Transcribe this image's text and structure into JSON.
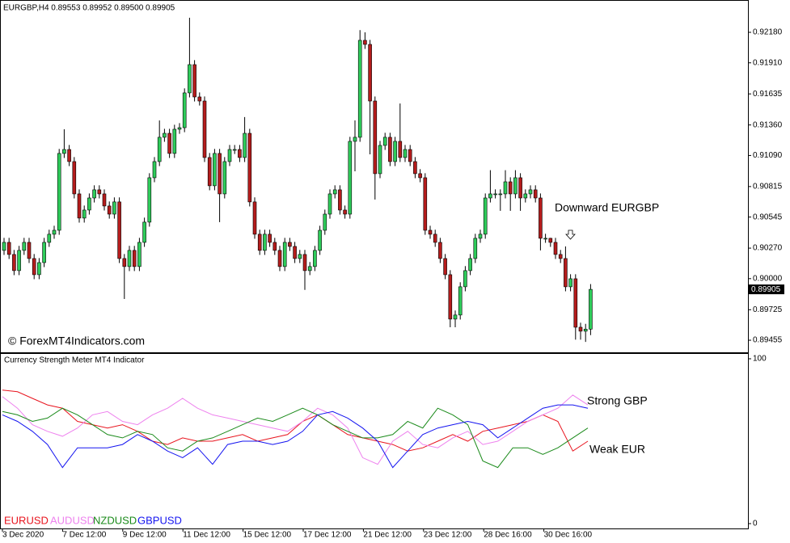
{
  "chart_data": [
    {
      "type": "candlestick",
      "title": "EURGBP,H4  0.89553 0.89952 0.89500 0.89905",
      "up_color": "#2ecc5a",
      "down_color": "#b51c1c",
      "ylim": [
        0.89348,
        0.92466
      ],
      "yticks": [
        {
          "value": 0.9218,
          "label": "0.92180"
        },
        {
          "value": 0.9191,
          "label": "0.91910"
        },
        0.91635,
        {
          "value": 0.9136,
          "label": "0.91360"
        },
        {
          "value": 0.9109,
          "label": "0.91090"
        },
        0.90815,
        0.90545,
        {
          "value": 0.9027,
          "label": "0.90270"
        },
        {
          "value": 0.9,
          "label": "0.90000"
        },
        0.89725,
        0.89455
      ],
      "x_tick_labels": [
        "3 Dec 2020",
        "7 Dec 12:00",
        "9 Dec 12:00",
        "11 Dec 12:00",
        "15 Dec 12:00",
        "17 Dec 12:00",
        "21 Dec 12:00",
        "23 Dec 12:00",
        "28 Dec 16:00",
        "30 Dec 16:00"
      ],
      "annotations": [
        "Downward EURGBP",
        "© ForexMT4Indicators.com"
      ],
      "candles": [
        [
          0.9025,
          0.90361,
          0.9021,
          0.90321
        ],
        [
          0.90321,
          0.90361,
          0.90174,
          0.90214
        ],
        [
          0.90214,
          0.90254,
          0.90031,
          0.90071
        ],
        [
          0.90071,
          0.9029,
          0.90031,
          0.9025
        ],
        [
          0.9025,
          0.90361,
          0.9021,
          0.90321
        ],
        [
          0.90321,
          0.90361,
          0.90138,
          0.90178
        ],
        [
          0.90178,
          0.90218,
          0.89995,
          0.90035
        ],
        [
          0.90035,
          0.90182,
          0.89995,
          0.90142
        ],
        [
          0.90142,
          0.90361,
          0.90102,
          0.90321
        ],
        [
          0.90321,
          0.90433,
          0.90281,
          0.90393
        ],
        [
          0.90393,
          0.90468,
          0.90353,
          0.90428
        ],
        [
          0.90428,
          0.91148,
          0.90388,
          0.91108
        ],
        [
          0.91108,
          0.91322,
          0.91068,
          0.91143
        ],
        [
          0.91143,
          0.91183,
          0.90996,
          0.91036
        ],
        [
          0.91036,
          0.91076,
          0.9071,
          0.9075
        ],
        [
          0.9075,
          0.9079,
          0.90496,
          0.90536
        ],
        [
          0.90536,
          0.90647,
          0.90496,
          0.90607
        ],
        [
          0.90607,
          0.90754,
          0.90567,
          0.90714
        ],
        [
          0.90714,
          0.90826,
          0.90674,
          0.90786
        ],
        [
          0.90786,
          0.90826,
          0.9071,
          0.9075
        ],
        [
          0.9075,
          0.9079,
          0.90603,
          0.90643
        ],
        [
          0.90643,
          0.90683,
          0.90531,
          0.90571
        ],
        [
          0.90571,
          0.90719,
          0.90531,
          0.90679
        ],
        [
          0.90679,
          0.90719,
          0.90138,
          0.90178
        ],
        [
          0.90178,
          0.90218,
          0.8982,
          0.90107
        ],
        [
          0.90107,
          0.9029,
          0.90067,
          0.9025
        ],
        [
          0.9025,
          0.9029,
          0.90067,
          0.90107
        ],
        [
          0.90107,
          0.90361,
          0.90067,
          0.90321
        ],
        [
          0.90321,
          0.9054,
          0.90281,
          0.905
        ],
        [
          0.905,
          0.90933,
          0.9046,
          0.90893
        ],
        [
          0.90893,
          0.91076,
          0.90853,
          0.91036
        ],
        [
          0.91036,
          0.914,
          0.90996,
          0.91251
        ],
        [
          0.91251,
          0.91326,
          0.91211,
          0.91286
        ],
        [
          0.91286,
          0.91326,
          0.91068,
          0.91108
        ],
        [
          0.91108,
          0.91362,
          0.91068,
          0.91322
        ],
        [
          0.91322,
          0.91376,
          0.91282,
          0.91336
        ],
        [
          0.91336,
          0.91684,
          0.91296,
          0.91644
        ],
        [
          0.91644,
          0.92309,
          0.91604,
          0.91894
        ],
        [
          0.91894,
          0.91934,
          0.91568,
          0.91608
        ],
        [
          0.91608,
          0.91648,
          0.91532,
          0.91572
        ],
        [
          0.91572,
          0.91612,
          0.91032,
          0.91072
        ],
        [
          0.91072,
          0.91112,
          0.90782,
          0.90822
        ],
        [
          0.90822,
          0.91148,
          0.90782,
          0.91108
        ],
        [
          0.91108,
          0.91148,
          0.905,
          0.9075
        ],
        [
          0.9075,
          0.91076,
          0.9071,
          0.91036
        ],
        [
          0.91036,
          0.91183,
          0.90996,
          0.91143
        ],
        [
          0.91143,
          0.91183,
          0.91103,
          0.91143
        ],
        [
          0.91143,
          0.91183,
          0.91032,
          0.91072
        ],
        [
          0.91072,
          0.9143,
          0.91032,
          0.91286
        ],
        [
          0.91286,
          0.91326,
          0.90639,
          0.90679
        ],
        [
          0.90679,
          0.90719,
          0.90353,
          0.90393
        ],
        [
          0.90393,
          0.90433,
          0.9021,
          0.9025
        ],
        [
          0.9025,
          0.90433,
          0.9021,
          0.90393
        ],
        [
          0.90393,
          0.90433,
          0.90281,
          0.90321
        ],
        [
          0.90321,
          0.90361,
          0.9021,
          0.9025
        ],
        [
          0.9025,
          0.9029,
          0.90067,
          0.90107
        ],
        [
          0.90107,
          0.90361,
          0.90067,
          0.90321
        ],
        [
          0.90321,
          0.90361,
          0.90245,
          0.90285
        ],
        [
          0.90285,
          0.90325,
          0.90138,
          0.90178
        ],
        [
          0.90178,
          0.90254,
          0.90138,
          0.90214
        ],
        [
          0.90214,
          0.90254,
          0.899,
          0.90071
        ],
        [
          0.90071,
          0.90147,
          0.90031,
          0.90107
        ],
        [
          0.90107,
          0.9029,
          0.90067,
          0.9025
        ],
        [
          0.9025,
          0.90468,
          0.9021,
          0.90428
        ],
        [
          0.90428,
          0.90611,
          0.90388,
          0.90571
        ],
        [
          0.90571,
          0.9079,
          0.90531,
          0.9075
        ],
        [
          0.9075,
          0.90826,
          0.9071,
          0.90786
        ],
        [
          0.90786,
          0.90826,
          0.90567,
          0.90607
        ],
        [
          0.90607,
          0.90647,
          0.90531,
          0.90571
        ],
        [
          0.90571,
          0.91255,
          0.90531,
          0.91215
        ],
        [
          0.91215,
          0.914,
          0.9095,
          0.91251
        ],
        [
          0.91251,
          0.922,
          0.91211,
          0.92109
        ],
        [
          0.92109,
          0.9218,
          0.92033,
          0.92073
        ],
        [
          0.92073,
          0.92113,
          0.911,
          0.91572
        ],
        [
          0.91572,
          0.91612,
          0.907,
          0.90929
        ],
        [
          0.90929,
          0.91219,
          0.90889,
          0.91179
        ],
        [
          0.91179,
          0.91291,
          0.91139,
          0.91251
        ],
        [
          0.91251,
          0.91291,
          0.90996,
          0.91036
        ],
        [
          0.91036,
          0.91255,
          0.90996,
          0.91215
        ],
        [
          0.91215,
          0.9155,
          0.91032,
          0.91072
        ],
        [
          0.91072,
          0.91183,
          0.91032,
          0.91143
        ],
        [
          0.91143,
          0.91183,
          0.90996,
          0.91036
        ],
        [
          0.91036,
          0.91076,
          0.90889,
          0.90929
        ],
        [
          0.90929,
          0.90969,
          0.90853,
          0.90893
        ],
        [
          0.90893,
          0.90933,
          0.90388,
          0.90428
        ],
        [
          0.90428,
          0.90468,
          0.90353,
          0.90393
        ],
        [
          0.90393,
          0.90433,
          0.90281,
          0.90321
        ],
        [
          0.90321,
          0.90361,
          0.90138,
          0.90178
        ],
        [
          0.90178,
          0.90218,
          0.89995,
          0.90035
        ],
        [
          0.90035,
          0.90075,
          0.8957,
          0.89642
        ],
        [
          0.89642,
          0.89718,
          0.8957,
          0.89678
        ],
        [
          0.89678,
          0.89968,
          0.89638,
          0.89928
        ],
        [
          0.89928,
          0.90111,
          0.89888,
          0.90071
        ],
        [
          0.90071,
          0.90218,
          0.90031,
          0.90178
        ],
        [
          0.90178,
          0.90397,
          0.90138,
          0.90357
        ],
        [
          0.90357,
          0.90433,
          0.90317,
          0.90393
        ],
        [
          0.90393,
          0.90754,
          0.90353,
          0.90714
        ],
        [
          0.90714,
          0.9096,
          0.90674,
          0.9075
        ],
        [
          0.9075,
          0.9079,
          0.9071,
          0.9075
        ],
        [
          0.9075,
          0.9079,
          0.906,
          0.9075
        ],
        [
          0.9075,
          0.9096,
          0.9071,
          0.90857
        ],
        [
          0.90857,
          0.90897,
          0.906,
          0.9075
        ],
        [
          0.9075,
          0.9096,
          0.9071,
          0.90893
        ],
        [
          0.90893,
          0.90933,
          0.906,
          0.90714
        ],
        [
          0.90714,
          0.9079,
          0.90674,
          0.9075
        ],
        [
          0.9075,
          0.90826,
          0.9071,
          0.90786
        ],
        [
          0.90786,
          0.90826,
          0.90674,
          0.90714
        ],
        [
          0.90714,
          0.90754,
          0.9025,
          0.90357
        ],
        [
          0.90357,
          0.90397,
          0.90317,
          0.90357
        ],
        [
          0.90357,
          0.90361,
          0.90281,
          0.90321
        ],
        [
          0.90321,
          0.90361,
          0.90174,
          0.90214
        ],
        [
          0.90214,
          0.90254,
          0.90138,
          0.90178
        ],
        [
          0.90178,
          0.90285,
          0.89888,
          0.89928
        ],
        [
          0.89928,
          0.90039,
          0.89888,
          0.89999
        ],
        [
          0.89999,
          0.90039,
          0.8946,
          0.8957
        ],
        [
          0.8957,
          0.8961,
          0.8946,
          0.89535
        ],
        [
          0.89535,
          0.896,
          0.8944,
          0.89553
        ],
        [
          0.89553,
          0.89952,
          0.895,
          0.89905
        ]
      ]
    },
    {
      "type": "line",
      "title": "Currency Strength Meter MT4 Indicator",
      "ylim": [
        0,
        100
      ],
      "yticks": [
        0,
        100
      ],
      "annotations": [
        "Strong GBP",
        "Weak EUR"
      ],
      "series": [
        {
          "name": "EURUSD",
          "color": "#e8141e",
          "values": [
            81,
            80,
            76,
            72,
            70,
            62,
            60,
            58,
            60,
            56,
            50,
            48,
            52,
            50,
            50,
            52,
            54,
            50,
            52,
            54,
            62,
            66,
            60,
            54,
            52,
            50,
            48,
            44,
            46,
            50,
            54,
            50,
            56,
            58,
            60,
            62,
            66,
            62,
            44,
            50
          ]
        },
        {
          "name": "AUDUSD",
          "color": "#ee82ee",
          "values": [
            77,
            70,
            60,
            56,
            53,
            58,
            66,
            68,
            62,
            60,
            66,
            70,
            76,
            70,
            66,
            64,
            62,
            60,
            58,
            56,
            62,
            70,
            66,
            58,
            40,
            36,
            50,
            56,
            48,
            46,
            52,
            56,
            48,
            50,
            56,
            62,
            66,
            70,
            78,
            72
          ]
        },
        {
          "name": "NZDUSD",
          "color": "#1a8a1a",
          "values": [
            68,
            66,
            62,
            64,
            70,
            66,
            60,
            54,
            52,
            56,
            54,
            46,
            44,
            50,
            52,
            56,
            60,
            64,
            62,
            66,
            70,
            66,
            60,
            56,
            52,
            52,
            54,
            62,
            58,
            70,
            66,
            60,
            38,
            34,
            46,
            46,
            42,
            46,
            52,
            58
          ]
        },
        {
          "name": "GBPUSD",
          "color": "#1414f0",
          "values": [
            66,
            62,
            56,
            48,
            34,
            46,
            46,
            46,
            48,
            54,
            50,
            44,
            40,
            46,
            36,
            48,
            50,
            50,
            48,
            50,
            56,
            66,
            68,
            64,
            58,
            50,
            34,
            44,
            54,
            58,
            60,
            62,
            60,
            52,
            58,
            64,
            70,
            72,
            72,
            70
          ]
        }
      ]
    }
  ]
}
